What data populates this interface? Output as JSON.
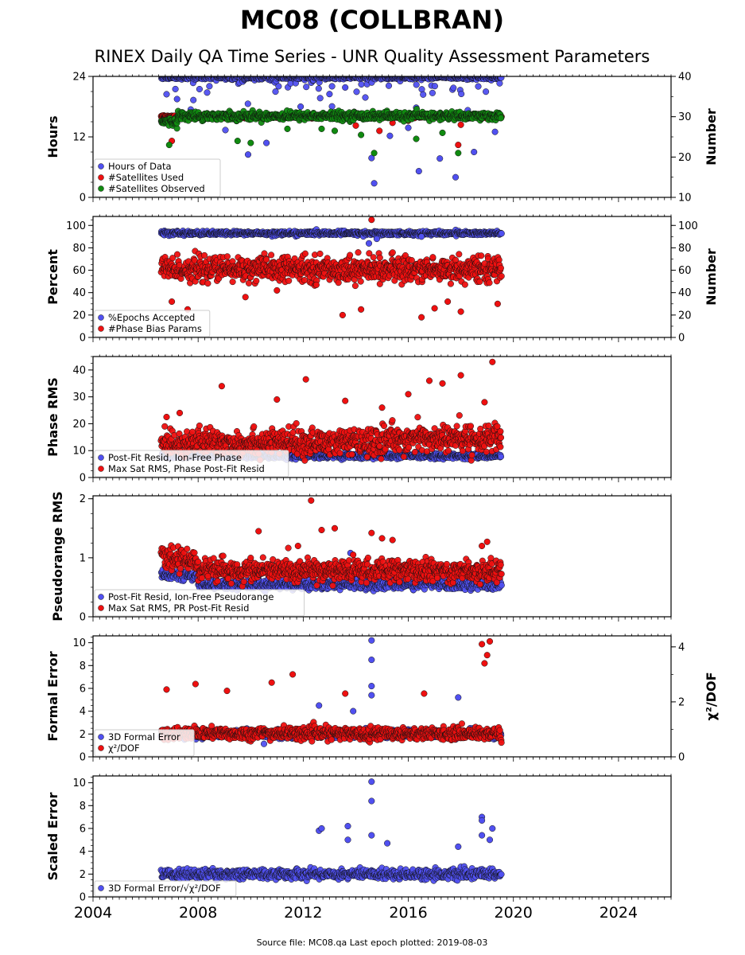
{
  "title": "MC08 (COLLBRAN)",
  "subtitle": "RINEX Daily QA Time Series - UNR Quality Assessment Parameters",
  "footer": "Source file: MC08.qa Last epoch plotted: 2019-08-03",
  "colors": {
    "blue": "#5050f0",
    "red": "#ee1010",
    "green": "#108a10"
  },
  "chart_data": [
    {
      "type": "scatter",
      "ylabel": "Hours",
      "ylabel_right": "Number",
      "xlim": [
        2004,
        2026
      ],
      "ylim": [
        0,
        24
      ],
      "yticks": [
        0,
        12,
        24
      ],
      "ylim_right": [
        10,
        40
      ],
      "yticks_right": [
        10,
        20,
        30,
        40
      ],
      "legend_position": "lower-left",
      "series": [
        {
          "name": "Hours of Data",
          "color": "blue",
          "axis": "left",
          "base": 23.8,
          "spread": 0.3,
          "outliers": [
            [
              2007.2,
              19.5
            ],
            [
              2011.9,
              18.0
            ],
            [
              2013.0,
              20.5
            ],
            [
              2013.6,
              21.8
            ],
            [
              2014.6,
              7.8
            ],
            [
              2014.7,
              2.8
            ],
            [
              2015.3,
              12.2
            ],
            [
              2016.0,
              13.8
            ],
            [
              2016.4,
              5.2
            ],
            [
              2017.2,
              7.7
            ],
            [
              2017.8,
              4.0
            ],
            [
              2018.5,
              9.0
            ],
            [
              2019.3,
              13.0
            ],
            [
              2009.9,
              8.5
            ],
            [
              2010.6,
              10.8
            ],
            [
              2016.3,
              17.8
            ]
          ]
        },
        {
          "name": "#Satellites Used",
          "color": "red",
          "axis": "right",
          "base": 30.0,
          "spread": 0.3,
          "outliers": [
            [
              2014.0,
              27.8
            ],
            [
              2014.9,
              26.5
            ],
            [
              2015.4,
              28.5
            ],
            [
              2016.0,
              29.0
            ],
            [
              2018.0,
              28.0
            ],
            [
              2007.0,
              24.0
            ],
            [
              2017.9,
              23.0
            ]
          ]
        },
        {
          "name": "#Satellites Observed",
          "color": "green",
          "axis": "right",
          "base": 30.2,
          "spread": 0.8,
          "outliers": [
            [
              2009.5,
              24.0
            ],
            [
              2010.0,
              23.5
            ],
            [
              2006.9,
              23.0
            ],
            [
              2013.2,
              26.5
            ],
            [
              2014.2,
              25.5
            ],
            [
              2014.7,
              21.0
            ],
            [
              2016.3,
              24.5
            ],
            [
              2017.3,
              26.0
            ],
            [
              2017.9,
              21.0
            ],
            [
              2012.7,
              27.0
            ],
            [
              2011.4,
              27.0
            ]
          ]
        }
      ]
    },
    {
      "type": "scatter",
      "ylabel": "Percent",
      "ylabel_right": "Number",
      "xlim": [
        2004,
        2026
      ],
      "ylim": [
        0,
        108
      ],
      "yticks": [
        0,
        20,
        40,
        60,
        80,
        100
      ],
      "ylim_right": [
        0,
        108
      ],
      "yticks_right": [
        0,
        20,
        40,
        60,
        80,
        100
      ],
      "legend_position": "lower-left",
      "series": [
        {
          "name": "%Epochs Accepted",
          "color": "blue",
          "axis": "left",
          "base": 93.0,
          "spread": 1.5,
          "outliers": [
            [
              2014.5,
              84.0
            ],
            [
              2014.8,
              88.0
            ],
            [
              2016.5,
              90.0
            ]
          ]
        },
        {
          "name": "#Phase Bias Params",
          "color": "red",
          "axis": "right",
          "base": 61.0,
          "spread": 9.0,
          "outliers": [
            [
              2014.6,
              105.0
            ],
            [
              2013.5,
              20.0
            ],
            [
              2014.2,
              25.0
            ],
            [
              2016.5,
              18.0
            ],
            [
              2017.0,
              26.0
            ],
            [
              2017.5,
              32.0
            ],
            [
              2018.0,
              23.0
            ],
            [
              2019.4,
              30.0
            ],
            [
              2007.0,
              32.0
            ],
            [
              2007.6,
              25.0
            ],
            [
              2009.8,
              36.0
            ],
            [
              2011.0,
              42.0
            ],
            [
              2012.5,
              47.0
            ]
          ]
        }
      ]
    },
    {
      "type": "scatter",
      "ylabel": "Phase RMS",
      "xlim": [
        2004,
        2026
      ],
      "ylim": [
        0,
        45
      ],
      "yticks": [
        0,
        10,
        20,
        30,
        40
      ],
      "legend_position": "lower-left",
      "series": [
        {
          "name": "Post-Fit Resid, Ion-Free Phase",
          "color": "blue",
          "axis": "left",
          "base": 8.0,
          "spread": 0.8,
          "outliers": []
        },
        {
          "name": "Max Sat RMS, Phase Post-Fit Resid",
          "color": "red",
          "axis": "left",
          "base": 13.0,
          "spread": 4.0,
          "outliers": [
            [
              2019.2,
              43.0
            ],
            [
              2018.0,
              38.0
            ],
            [
              2012.1,
              36.5
            ],
            [
              2008.9,
              34.0
            ],
            [
              2016.0,
              31.0
            ],
            [
              2016.8,
              36.0
            ],
            [
              2017.3,
              35.0
            ],
            [
              2018.9,
              28.0
            ],
            [
              2011.0,
              29.0
            ],
            [
              2013.6,
              28.5
            ],
            [
              2006.8,
              22.5
            ],
            [
              2007.3,
              24.0
            ],
            [
              2015.0,
              26.0
            ]
          ]
        }
      ]
    },
    {
      "type": "scatter",
      "ylabel": "Pseudorange RMS",
      "xlim": [
        2004,
        2026
      ],
      "ylim": [
        0,
        2.05
      ],
      "yticks": [
        0,
        1,
        2
      ],
      "legend_position": "lower-left",
      "series": [
        {
          "name": "Post-Fit Resid, Ion-Free Pseudorange",
          "color": "blue",
          "axis": "left",
          "base": 0.55,
          "spread": 0.07,
          "outliers": [
            [
              2013.8,
              1.08
            ],
            [
              2006.8,
              0.8
            ]
          ]
        },
        {
          "name": "Max Sat RMS, PR Post-Fit Resid",
          "color": "red",
          "axis": "left",
          "base": 0.78,
          "spread": 0.15,
          "outliers": [
            [
              2012.3,
              1.97
            ],
            [
              2013.2,
              1.5
            ],
            [
              2012.7,
              1.47
            ],
            [
              2010.3,
              1.45
            ],
            [
              2014.6,
              1.42
            ],
            [
              2015.0,
              1.33
            ],
            [
              2015.4,
              1.3
            ],
            [
              2011.8,
              1.2
            ],
            [
              2019.0,
              1.27
            ],
            [
              2018.8,
              1.2
            ],
            [
              2013.9,
              1.05
            ]
          ]
        }
      ]
    },
    {
      "type": "scatter",
      "ylabel": "Formal Error",
      "ylabel_right": "χ²/DOF",
      "xlim": [
        2004,
        2026
      ],
      "ylim": [
        0,
        10.6
      ],
      "yticks": [
        0,
        2,
        4,
        6,
        8,
        10
      ],
      "ylim_right": [
        0,
        4.4
      ],
      "yticks_right": [
        0,
        2,
        4
      ],
      "legend_position": "lower-left",
      "series": [
        {
          "name": "3D Formal Error",
          "color": "blue",
          "axis": "left",
          "base": 2.0,
          "spread": 0.3,
          "outliers": [
            [
              2014.6,
              10.2
            ],
            [
              2014.6,
              8.5
            ],
            [
              2014.6,
              6.2
            ],
            [
              2014.6,
              5.4
            ],
            [
              2013.9,
              4.0
            ],
            [
              2017.9,
              5.2
            ],
            [
              2012.6,
              4.5
            ]
          ]
        },
        {
          "name": "χ²/DOF",
          "color": "red",
          "axis": "right",
          "base": 0.85,
          "spread": 0.18,
          "outliers": [
            [
              2019.1,
              4.2
            ],
            [
              2018.8,
              4.1
            ],
            [
              2018.9,
              3.4
            ],
            [
              2019.0,
              3.7
            ],
            [
              2011.6,
              3.0
            ],
            [
              2010.8,
              2.7
            ],
            [
              2006.8,
              2.45
            ],
            [
              2007.9,
              2.65
            ],
            [
              2013.6,
              2.3
            ],
            [
              2016.6,
              2.3
            ],
            [
              2009.1,
              2.4
            ]
          ]
        }
      ]
    },
    {
      "type": "scatter",
      "ylabel": "Scaled Error",
      "xlim": [
        2004,
        2026
      ],
      "ylim": [
        0,
        10.6
      ],
      "yticks": [
        0,
        2,
        4,
        6,
        8,
        10
      ],
      "legend_position": "lower-left",
      "xticks": [
        2004,
        2008,
        2012,
        2016,
        2020,
        2024
      ],
      "series": [
        {
          "name": "3D Formal Error/√χ²/DOF",
          "color": "blue",
          "axis": "left",
          "base": 2.0,
          "spread": 0.35,
          "outliers": [
            [
              2014.6,
              10.1
            ],
            [
              2014.6,
              8.4
            ],
            [
              2012.6,
              5.8
            ],
            [
              2012.7,
              6.0
            ],
            [
              2013.7,
              6.2
            ],
            [
              2013.7,
              5.0
            ],
            [
              2014.6,
              5.4
            ],
            [
              2015.2,
              4.7
            ],
            [
              2018.8,
              7.0
            ],
            [
              2018.8,
              6.7
            ],
            [
              2019.2,
              6.0
            ],
            [
              2019.1,
              5.0
            ],
            [
              2017.9,
              4.4
            ],
            [
              2018.8,
              5.4
            ]
          ]
        }
      ]
    }
  ]
}
